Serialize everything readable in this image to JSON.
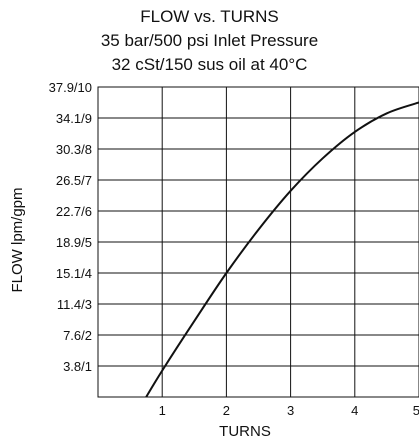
{
  "chart_data": {
    "type": "line",
    "title": [
      "FLOW vs. TURNS",
      "35 bar/500 psi Inlet Pressure",
      "32 cSt/150 sus oil at 40°C"
    ],
    "xlabel": "TURNS",
    "ylabel": "FLOW lpm/gpm",
    "xlim": [
      0,
      5
    ],
    "ylim": [
      0,
      10
    ],
    "x_ticks": [
      1,
      2,
      3,
      4,
      5
    ],
    "x_tick_labels": [
      "1",
      "2",
      "3",
      "4",
      "5"
    ],
    "y_ticks": [
      1,
      2,
      3,
      4,
      5,
      6,
      7,
      8,
      9,
      10
    ],
    "y_tick_labels": [
      "3.8/1",
      "7.6/2",
      "11.4/3",
      "15.1/4",
      "18.9/5",
      "22.7/6",
      "26.5/7",
      "30.3/8",
      "34.1/9",
      "37.9/10"
    ],
    "grid": true,
    "series": [
      {
        "x": [
          0.75,
          1.0,
          1.5,
          2.0,
          2.5,
          3.0,
          3.5,
          4.0,
          4.5,
          5.0
        ],
        "y": [
          0.0,
          0.85,
          2.45,
          4.0,
          5.4,
          6.65,
          7.7,
          8.55,
          9.15,
          9.5
        ]
      }
    ],
    "line_color": "#111111"
  }
}
